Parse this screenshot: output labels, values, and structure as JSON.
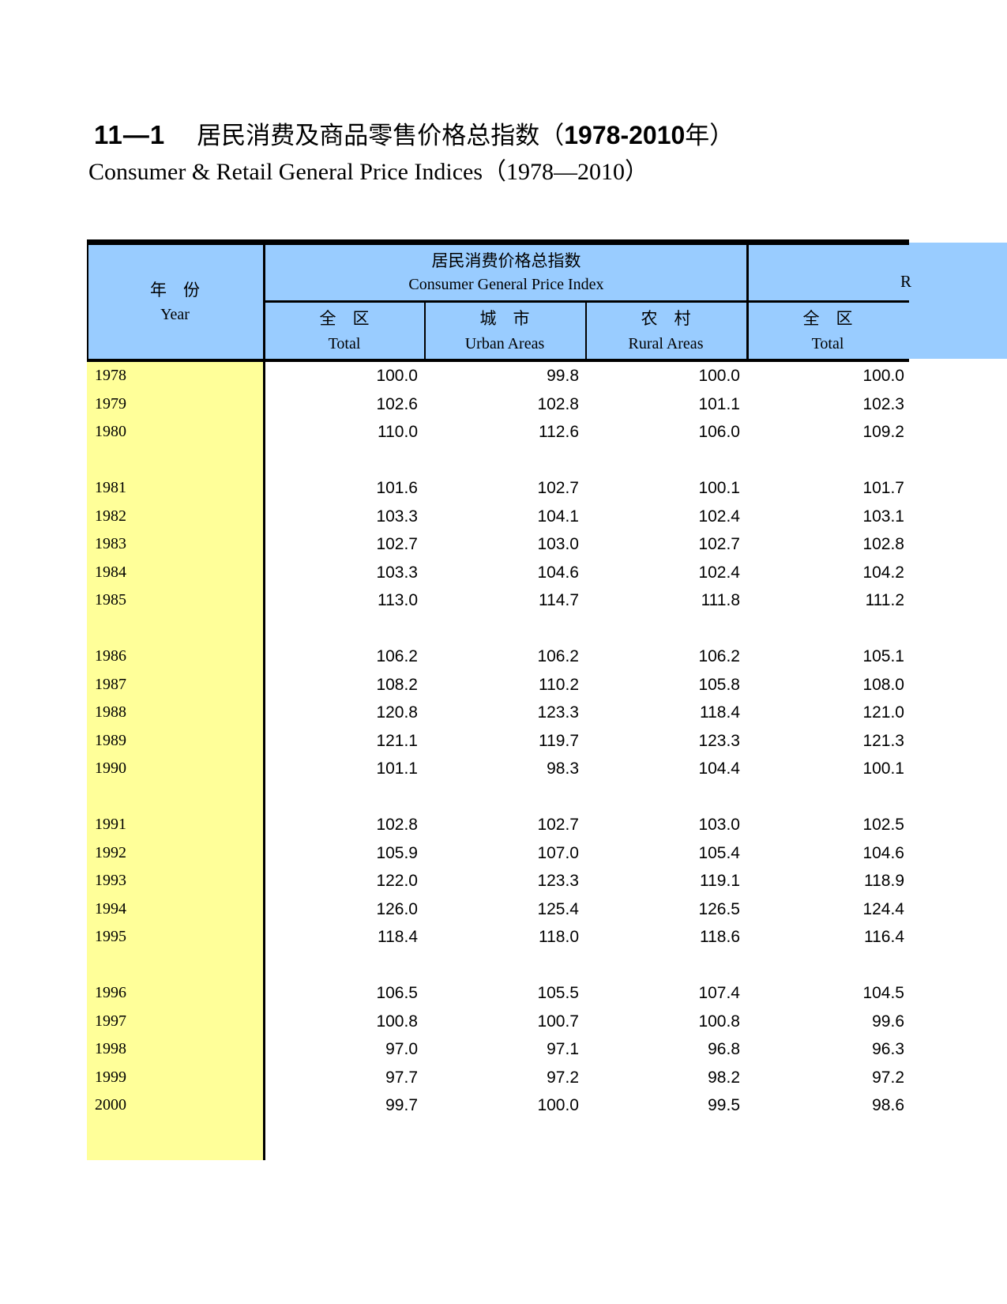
{
  "page": {
    "title": {
      "index": "11—1",
      "cn_open": "居民消费及商品零售价格总指数（",
      "year_range": "1978-2010",
      "cn_close": "年）"
    },
    "subtitle": "Consumer & Retail General Price Indices（1978—2010）"
  },
  "table": {
    "year_header": {
      "cn": "年　份",
      "en": "Year"
    },
    "consumer_group": {
      "cn": "居民消费价格总指数",
      "en": "Consumer General Price Index"
    },
    "retail_group_clipped": "R",
    "columns": [
      {
        "cn": "全　区",
        "en": "Total"
      },
      {
        "cn": "城　市",
        "en": "Urban Areas"
      },
      {
        "cn": "农　村",
        "en": "Rural Areas"
      },
      {
        "cn": "全　区",
        "en": "Total"
      }
    ],
    "row_groups": [
      [
        {
          "year": "1978",
          "values": [
            "100.0",
            "99.8",
            "100.0",
            "100.0"
          ]
        },
        {
          "year": "1979",
          "values": [
            "102.6",
            "102.8",
            "101.1",
            "102.3"
          ]
        },
        {
          "year": "1980",
          "values": [
            "110.0",
            "112.6",
            "106.0",
            "109.2"
          ]
        }
      ],
      [
        {
          "year": "1981",
          "values": [
            "101.6",
            "102.7",
            "100.1",
            "101.7"
          ]
        },
        {
          "year": "1982",
          "values": [
            "103.3",
            "104.1",
            "102.4",
            "103.1"
          ]
        },
        {
          "year": "1983",
          "values": [
            "102.7",
            "103.0",
            "102.7",
            "102.8"
          ]
        },
        {
          "year": "1984",
          "values": [
            "103.3",
            "104.6",
            "102.4",
            "104.2"
          ]
        },
        {
          "year": "1985",
          "values": [
            "113.0",
            "114.7",
            "111.8",
            "111.2"
          ]
        }
      ],
      [
        {
          "year": "1986",
          "values": [
            "106.2",
            "106.2",
            "106.2",
            "105.1"
          ]
        },
        {
          "year": "1987",
          "values": [
            "108.2",
            "110.2",
            "105.8",
            "108.0"
          ]
        },
        {
          "year": "1988",
          "values": [
            "120.8",
            "123.3",
            "118.4",
            "121.0"
          ]
        },
        {
          "year": "1989",
          "values": [
            "121.1",
            "119.7",
            "123.3",
            "121.3"
          ]
        },
        {
          "year": "1990",
          "values": [
            "101.1",
            "98.3",
            "104.4",
            "100.1"
          ]
        }
      ],
      [
        {
          "year": "1991",
          "values": [
            "102.8",
            "102.7",
            "103.0",
            "102.5"
          ]
        },
        {
          "year": "1992",
          "values": [
            "105.9",
            "107.0",
            "105.4",
            "104.6"
          ]
        },
        {
          "year": "1993",
          "values": [
            "122.0",
            "123.3",
            "119.1",
            "118.9"
          ]
        },
        {
          "year": "1994",
          "values": [
            "126.0",
            "125.4",
            "126.5",
            "124.4"
          ]
        },
        {
          "year": "1995",
          "values": [
            "118.4",
            "118.0",
            "118.6",
            "116.4"
          ]
        }
      ],
      [
        {
          "year": "1996",
          "values": [
            "106.5",
            "105.5",
            "107.4",
            "104.5"
          ]
        },
        {
          "year": "1997",
          "values": [
            "100.8",
            "100.7",
            "100.8",
            "99.6"
          ]
        },
        {
          "year": "1998",
          "values": [
            "97.0",
            "97.1",
            "96.8",
            "96.3"
          ]
        },
        {
          "year": "1999",
          "values": [
            "97.7",
            "97.2",
            "98.2",
            "97.2"
          ]
        },
        {
          "year": "2000",
          "values": [
            "99.7",
            "100.0",
            "99.5",
            "98.6"
          ]
        }
      ]
    ]
  },
  "colors": {
    "header_bg": "#99CCFF",
    "year_column_bg": "#FFFF99",
    "border": "#000000",
    "page_bg": "#FFFFFF"
  }
}
